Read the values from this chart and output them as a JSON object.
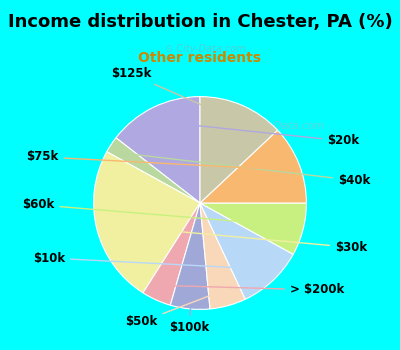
{
  "title": "Income distribution in Chester, PA (%)",
  "subtitle": "Other residents",
  "title_color": "#000000",
  "subtitle_color": "#cc8800",
  "background_top": "#00ffff",
  "background_bottom": "#00ffff",
  "chart_bg_start": "#d8f0e0",
  "chart_bg_end": "#e8f8f0",
  "labels": [
    "$20k",
    "$40k",
    "$30k",
    "> $200k",
    "$100k",
    "$50k",
    "$10k",
    "$60k",
    "$75k",
    "$125k"
  ],
  "sizes": [
    14.5,
    2.5,
    24.0,
    4.5,
    6.0,
    5.5,
    10.0,
    8.0,
    12.0,
    13.0
  ],
  "colors": [
    "#b0a8e0",
    "#b8d8a0",
    "#f0f0a0",
    "#f0a8b0",
    "#a0a8d8",
    "#f8d8b8",
    "#b8d8f8",
    "#c8f080",
    "#f8b870",
    "#c8c8a8"
  ],
  "startangle": 90,
  "label_fontsize": 8.5,
  "watermark": "City-Data.com"
}
